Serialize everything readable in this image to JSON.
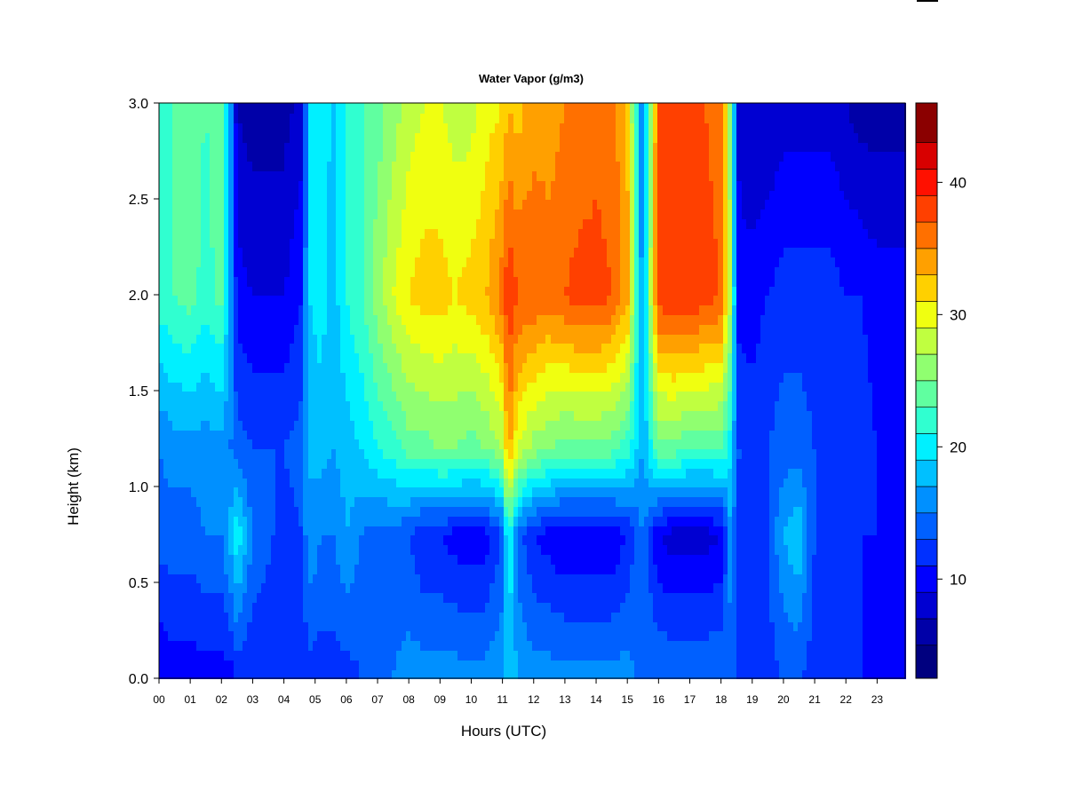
{
  "chart_data": {
    "type": "heatmap",
    "title": "Water Vapor (g/m3)",
    "xlabel": "Hours (UTC)",
    "ylabel": "Height (km)",
    "x_range": [
      0,
      23.9
    ],
    "y_range": [
      0.0,
      3.0
    ],
    "x_ticks": [
      "00",
      "01",
      "02",
      "03",
      "04",
      "05",
      "06",
      "07",
      "08",
      "09",
      "10",
      "11",
      "12",
      "13",
      "14",
      "15",
      "16",
      "17",
      "18",
      "19",
      "20",
      "21",
      "22",
      "23"
    ],
    "y_ticks": [
      "0.0",
      "0.5",
      "1.0",
      "1.5",
      "2.0",
      "2.5",
      "3.0"
    ],
    "colorbar": {
      "range": [
        2.5,
        46
      ],
      "ticks": [
        "10",
        "20",
        "30",
        "40"
      ],
      "levels": [
        {
          "upper": 5,
          "color": "#00007f"
        },
        {
          "upper": 7,
          "color": "#0000a8"
        },
        {
          "upper": 9,
          "color": "#0000d2"
        },
        {
          "upper": 11,
          "color": "#0000ff"
        },
        {
          "upper": 13,
          "color": "#0030ff"
        },
        {
          "upper": 15,
          "color": "#0060ff"
        },
        {
          "upper": 17,
          "color": "#0090ff"
        },
        {
          "upper": 19,
          "color": "#00c0ff"
        },
        {
          "upper": 21,
          "color": "#00f0ff"
        },
        {
          "upper": 23,
          "color": "#30ffd0"
        },
        {
          "upper": 25,
          "color": "#60ffa0"
        },
        {
          "upper": 27,
          "color": "#90ff70"
        },
        {
          "upper": 29,
          "color": "#c0ff40"
        },
        {
          "upper": 31,
          "color": "#f0ff10"
        },
        {
          "upper": 33,
          "color": "#ffd000"
        },
        {
          "upper": 35,
          "color": "#ffa000"
        },
        {
          "upper": 37,
          "color": "#ff7000"
        },
        {
          "upper": 39,
          "color": "#ff4000"
        },
        {
          "upper": 41,
          "color": "#ff1000"
        },
        {
          "upper": 43,
          "color": "#d80000"
        },
        {
          "upper": 46,
          "color": "#8b0000"
        }
      ]
    },
    "time_profiles": [
      {
        "t": 0.0,
        "low": 9,
        "mid": 14,
        "band": 15,
        "up": 22,
        "top": 22
      },
      {
        "t": 0.5,
        "low": 10,
        "mid": 14,
        "band": 16,
        "up": 23,
        "top": 23
      },
      {
        "t": 1.0,
        "low": 10,
        "mid": 14,
        "band": 16,
        "up": 24,
        "top": 24
      },
      {
        "t": 1.5,
        "low": 10,
        "mid": 15,
        "band": 16,
        "up": 22,
        "top": 23
      },
      {
        "t": 2.0,
        "low": 10,
        "mid": 15,
        "band": 16,
        "up": 24,
        "top": 24
      },
      {
        "t": 2.3,
        "low": 10,
        "mid": 18,
        "band": 15,
        "up": 17,
        "top": 17
      },
      {
        "t": 2.5,
        "low": 11,
        "mid": 21,
        "band": 14,
        "up": 10,
        "top": 7
      },
      {
        "t": 3.0,
        "low": 11,
        "mid": 15,
        "band": 13,
        "up": 9,
        "top": 6
      },
      {
        "t": 4.0,
        "low": 11,
        "mid": 12,
        "band": 13,
        "up": 9,
        "top": 6
      },
      {
        "t": 4.6,
        "low": 11,
        "mid": 13,
        "band": 14,
        "up": 11,
        "top": 8
      },
      {
        "t": 4.8,
        "low": 12,
        "mid": 17,
        "band": 17,
        "up": 19,
        "top": 20
      },
      {
        "t": 5.2,
        "low": 12,
        "mid": 15,
        "band": 18,
        "up": 20,
        "top": 21
      },
      {
        "t": 5.6,
        "low": 12,
        "mid": 15,
        "band": 17,
        "up": 18,
        "top": 18
      },
      {
        "t": 6.0,
        "low": 12,
        "mid": 17,
        "band": 18,
        "up": 21,
        "top": 22
      },
      {
        "t": 6.5,
        "low": 13,
        "mid": 15,
        "band": 19,
        "up": 23,
        "top": 23
      },
      {
        "t": 7.0,
        "low": 14,
        "mid": 14,
        "band": 21,
        "up": 26,
        "top": 24
      },
      {
        "t": 7.5,
        "low": 15,
        "mid": 14,
        "band": 22,
        "up": 29,
        "top": 26
      },
      {
        "t": 8.0,
        "low": 16,
        "mid": 13,
        "band": 24,
        "up": 31,
        "top": 28
      },
      {
        "t": 8.5,
        "low": 16,
        "mid": 11,
        "band": 24,
        "up": 32,
        "top": 29
      },
      {
        "t": 9.0,
        "low": 16,
        "mid": 11,
        "band": 25,
        "up": 32,
        "top": 29
      },
      {
        "t": 9.5,
        "low": 16,
        "mid": 10,
        "band": 25,
        "up": 31,
        "top": 28
      },
      {
        "t": 10.0,
        "low": 16,
        "mid": 10,
        "band": 24,
        "up": 32,
        "top": 28
      },
      {
        "t": 10.5,
        "low": 16,
        "mid": 10,
        "band": 25,
        "up": 33,
        "top": 30
      },
      {
        "t": 11.0,
        "low": 17,
        "mid": 13,
        "band": 27,
        "up": 36,
        "top": 31
      },
      {
        "t": 11.2,
        "low": 18,
        "mid": 22,
        "band": 34,
        "up": 39,
        "top": 33
      },
      {
        "t": 11.5,
        "low": 17,
        "mid": 14,
        "band": 29,
        "up": 37,
        "top": 32
      },
      {
        "t": 12.0,
        "low": 16,
        "mid": 11,
        "band": 26,
        "up": 37,
        "top": 34
      },
      {
        "t": 12.5,
        "low": 16,
        "mid": 10,
        "band": 25,
        "up": 36,
        "top": 34
      },
      {
        "t": 13.0,
        "low": 16,
        "mid": 9,
        "band": 24,
        "up": 37,
        "top": 35
      },
      {
        "t": 13.5,
        "low": 16,
        "mid": 9,
        "band": 24,
        "up": 38,
        "top": 35
      },
      {
        "t": 14.0,
        "low": 16,
        "mid": 9,
        "band": 24,
        "up": 38,
        "top": 36
      },
      {
        "t": 14.5,
        "low": 16,
        "mid": 9,
        "band": 24,
        "up": 37,
        "top": 36
      },
      {
        "t": 15.0,
        "low": 16,
        "mid": 11,
        "band": 22,
        "up": 34,
        "top": 33
      },
      {
        "t": 15.5,
        "low": 14,
        "mid": 15,
        "band": 17,
        "up": 16,
        "top": 14
      },
      {
        "t": 16.0,
        "low": 15,
        "mid": 9,
        "band": 24,
        "up": 38,
        "top": 37
      },
      {
        "t": 16.5,
        "low": 15,
        "mid": 8,
        "band": 24,
        "up": 39,
        "top": 37
      },
      {
        "t": 17.0,
        "low": 15,
        "mid": 8,
        "band": 23,
        "up": 39,
        "top": 37
      },
      {
        "t": 17.5,
        "low": 15,
        "mid": 8,
        "band": 23,
        "up": 38,
        "top": 37
      },
      {
        "t": 18.0,
        "low": 15,
        "mid": 9,
        "band": 23,
        "up": 37,
        "top": 36
      },
      {
        "t": 18.3,
        "low": 14,
        "mid": 16,
        "band": 20,
        "up": 28,
        "top": 26
      },
      {
        "t": 18.6,
        "low": 12,
        "mid": 12,
        "band": 13,
        "up": 10,
        "top": 8
      },
      {
        "t": 19.0,
        "low": 11,
        "mid": 12,
        "band": 12,
        "up": 10,
        "top": 7
      },
      {
        "t": 19.5,
        "low": 12,
        "mid": 13,
        "band": 13,
        "up": 11,
        "top": 7
      },
      {
        "t": 20.0,
        "low": 13,
        "mid": 17,
        "band": 14,
        "up": 12,
        "top": 8
      },
      {
        "t": 20.5,
        "low": 13,
        "mid": 19,
        "band": 14,
        "up": 12,
        "top": 8
      },
      {
        "t": 21.0,
        "low": 12,
        "mid": 13,
        "band": 13,
        "up": 12,
        "top": 8
      },
      {
        "t": 21.5,
        "low": 12,
        "mid": 12,
        "band": 13,
        "up": 12,
        "top": 8
      },
      {
        "t": 22.0,
        "low": 11,
        "mid": 12,
        "band": 12,
        "up": 11,
        "top": 7
      },
      {
        "t": 22.5,
        "low": 11,
        "mid": 11,
        "band": 12,
        "up": 11,
        "top": 6
      },
      {
        "t": 23.0,
        "low": 11,
        "mid": 11,
        "band": 11,
        "up": 10,
        "top": 6
      },
      {
        "t": 23.9,
        "low": 10,
        "mid": 11,
        "band": 11,
        "up": 10,
        "top": 6
      }
    ]
  }
}
